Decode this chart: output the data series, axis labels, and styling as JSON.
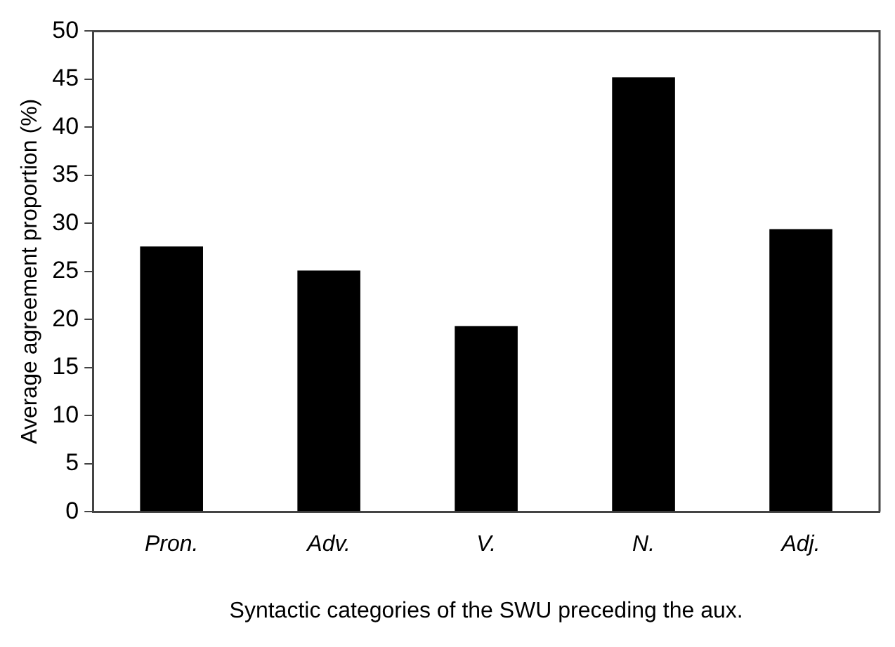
{
  "chart_data": {
    "type": "bar",
    "xlabel": "Syntactic categories of the SWU preceding the aux.",
    "ylabel": "Average agreement proportion (%)",
    "categories": [
      "Pron.",
      "Adv.",
      "V.",
      "N.",
      "Adj."
    ],
    "values": [
      27.6,
      25.1,
      19.3,
      45.2,
      29.4
    ],
    "color": "#000000",
    "ylim": [
      0,
      50
    ],
    "yticks": [
      0,
      5,
      10,
      15,
      20,
      25,
      30,
      35,
      40,
      45,
      50
    ],
    "grid": false,
    "legend": false
  }
}
